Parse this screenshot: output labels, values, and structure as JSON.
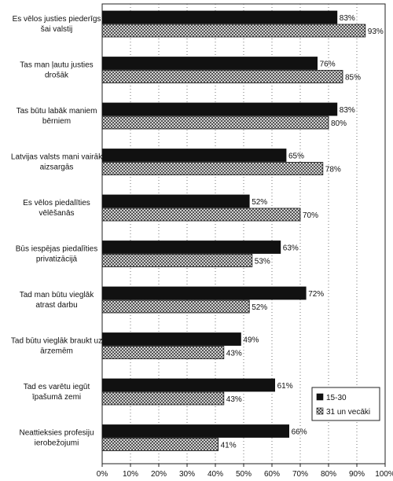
{
  "chart_data": {
    "type": "bar",
    "orientation": "horizontal",
    "categories": [
      [
        "Es vēlos justies piederīgs",
        "šai valstij"
      ],
      [
        "Tas man ļautu justies",
        "drošāk"
      ],
      [
        "Tas būtu labāk maniem",
        "bērniem"
      ],
      [
        "Latvijas valsts mani vairāk",
        "aizsargās"
      ],
      [
        "Es vēlos piedalīties",
        "vēlēšanās"
      ],
      [
        "Būs iespējas piedalīties",
        "privatizācijā"
      ],
      [
        "Tad man būtu vieglāk",
        "atrast darbu"
      ],
      [
        "Tad būtu vieglāk braukt uz",
        "ārzemēm"
      ],
      [
        "Tad es varētu iegūt",
        "īpašumā zemi"
      ],
      [
        "Neattieksies profesiju",
        "ierobežojumi"
      ]
    ],
    "series": [
      {
        "name": "15-30",
        "color": "#111111",
        "pattern": "solid",
        "values": [
          83,
          76,
          83,
          65,
          52,
          63,
          72,
          49,
          61,
          66
        ],
        "labels": [
          "83%",
          "76%",
          "83%",
          "65%",
          "52%",
          "63%",
          "72%",
          "49%",
          "61%",
          "66%"
        ]
      },
      {
        "name": "31 un vecāki",
        "color": "#888888",
        "pattern": "crosshatch",
        "values": [
          93,
          85,
          80,
          78,
          70,
          53,
          52,
          43,
          43,
          41
        ],
        "labels": [
          "93%",
          "85%",
          "80%",
          "78%",
          "70%",
          "53%",
          "52%",
          "43%",
          "43%",
          "41%"
        ]
      }
    ],
    "xlim": [
      0,
      100
    ],
    "xticks": [
      "0%",
      "10%",
      "20%",
      "30%",
      "40%",
      "50%",
      "60%",
      "70%",
      "80%",
      "90%",
      "100%"
    ],
    "grid": "vertical dotted",
    "legend_position": "bottom-right"
  }
}
